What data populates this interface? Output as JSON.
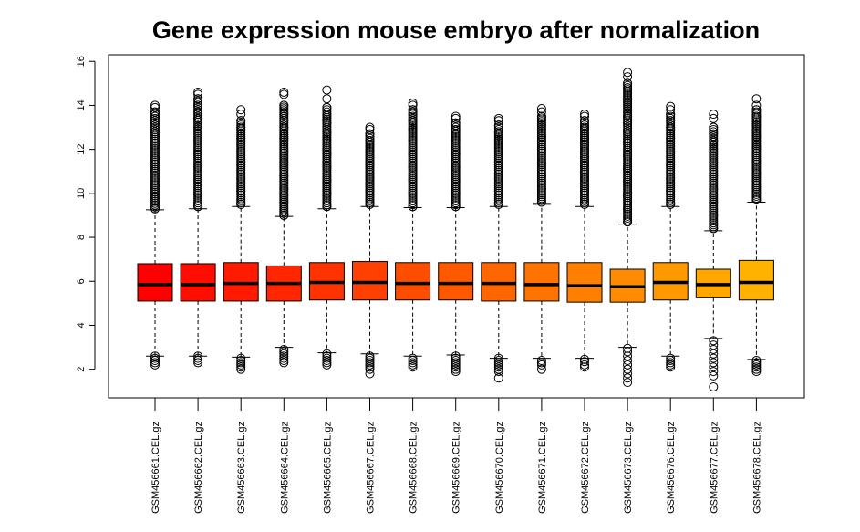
{
  "chart_data": {
    "type": "boxplot",
    "title": "Gene expression mouse embryo after normalization",
    "xlabel": "",
    "ylabel": "",
    "ylim": [
      0.7,
      16.3
    ],
    "yticks": [
      2,
      4,
      6,
      8,
      10,
      12,
      14,
      16
    ],
    "grid": false,
    "categories": [
      "GSM456661.CEL.gz",
      "GSM456662.CEL.gz",
      "GSM456663.CEL.gz",
      "GSM456664.CEL.gz",
      "GSM456665.CEL.gz",
      "GSM456667.CEL.gz",
      "GSM456668.CEL.gz",
      "GSM456669.CEL.gz",
      "GSM456670.CEL.gz",
      "GSM456671.CEL.gz",
      "GSM456672.CEL.gz",
      "GSM456673.CEL.gz",
      "GSM456676.CEL.gz",
      "GSM456677.CEL.gz",
      "GSM456678.CEL.gz"
    ],
    "boxes": [
      {
        "whisker_low": 2.6,
        "q1": 5.1,
        "median": 5.85,
        "q3": 6.8,
        "whisker_high": 9.25,
        "outliers_low": [
          2.6,
          2.5,
          2.4,
          2.3,
          2.2
        ],
        "outliers_high": [
          9.3,
          9.8,
          10.4,
          11.0,
          11.6,
          12.2,
          12.8,
          13.2,
          13.5,
          13.7,
          13.9,
          14.0
        ]
      },
      {
        "whisker_low": 2.6,
        "q1": 5.1,
        "median": 5.85,
        "q3": 6.8,
        "whisker_high": 9.3,
        "outliers_low": [
          2.6,
          2.5,
          2.4,
          2.3
        ],
        "outliers_high": [
          9.4,
          10.0,
          10.6,
          11.2,
          11.8,
          12.4,
          13.0,
          13.4,
          13.7,
          14.0,
          14.3,
          14.5,
          14.6
        ]
      },
      {
        "whisker_low": 2.55,
        "q1": 5.1,
        "median": 5.9,
        "q3": 6.85,
        "whisker_high": 9.4,
        "outliers_low": [
          2.5,
          2.4,
          2.3,
          2.2,
          2.1,
          2.0
        ],
        "outliers_high": [
          9.5,
          10.1,
          10.7,
          11.3,
          11.9,
          12.5,
          13.0,
          13.3,
          13.6,
          13.8
        ]
      },
      {
        "whisker_low": 3.0,
        "q1": 5.1,
        "median": 5.9,
        "q3": 6.7,
        "whisker_high": 8.95,
        "outliers_low": [
          2.9,
          2.8,
          2.7,
          2.6,
          2.5,
          2.4,
          2.3
        ],
        "outliers_high": [
          9.0,
          9.6,
          10.2,
          10.8,
          11.4,
          12.0,
          12.5,
          13.0,
          13.3,
          13.6,
          14.0,
          14.5,
          14.6
        ]
      },
      {
        "whisker_low": 2.75,
        "q1": 5.15,
        "median": 5.95,
        "q3": 6.85,
        "whisker_high": 9.3,
        "outliers_low": [
          2.7,
          2.6,
          2.5,
          2.4,
          2.3,
          2.2
        ],
        "outliers_high": [
          9.4,
          10.0,
          10.6,
          11.2,
          11.8,
          12.4,
          12.8,
          13.2,
          13.6,
          13.9,
          14.3,
          14.7
        ]
      },
      {
        "whisker_low": 2.7,
        "q1": 5.15,
        "median": 5.95,
        "q3": 6.9,
        "whisker_high": 9.4,
        "outliers_low": [
          2.6,
          2.5,
          2.4,
          2.3,
          2.2,
          2.1,
          2.0,
          1.8
        ],
        "outliers_high": [
          9.5,
          10.1,
          10.7,
          11.3,
          11.9,
          12.4,
          12.7,
          12.9,
          13.0
        ]
      },
      {
        "whisker_low": 2.6,
        "q1": 5.15,
        "median": 5.9,
        "q3": 6.85,
        "whisker_high": 9.35,
        "outliers_low": [
          2.5,
          2.4,
          2.3,
          2.2,
          2.1
        ],
        "outliers_high": [
          9.4,
          10.0,
          10.6,
          11.2,
          11.8,
          12.4,
          12.9,
          13.3,
          13.6,
          13.8,
          14.0,
          14.1
        ]
      },
      {
        "whisker_low": 2.65,
        "q1": 5.15,
        "median": 5.9,
        "q3": 6.85,
        "whisker_high": 9.35,
        "outliers_low": [
          2.6,
          2.5,
          2.4,
          2.3,
          2.2,
          2.1,
          2.0,
          1.9
        ],
        "outliers_high": [
          9.4,
          10.0,
          10.6,
          11.2,
          11.8,
          12.4,
          12.9,
          13.2,
          13.4,
          13.5
        ]
      },
      {
        "whisker_low": 2.5,
        "q1": 5.1,
        "median": 5.9,
        "q3": 6.85,
        "whisker_high": 9.4,
        "outliers_low": [
          2.5,
          2.4,
          2.3,
          2.2,
          2.1,
          2.0,
          1.9,
          1.6
        ],
        "outliers_high": [
          9.5,
          10.1,
          10.7,
          11.3,
          11.9,
          12.4,
          12.8,
          13.1,
          13.3,
          13.4
        ]
      },
      {
        "whisker_low": 2.5,
        "q1": 5.1,
        "median": 5.85,
        "q3": 6.85,
        "whisker_high": 9.5,
        "outliers_low": [
          2.4,
          2.3,
          2.2,
          2.0
        ],
        "outliers_high": [
          9.6,
          10.2,
          10.8,
          11.4,
          12.0,
          12.6,
          13.1,
          13.5,
          13.7,
          13.85
        ]
      },
      {
        "whisker_low": 2.5,
        "q1": 5.05,
        "median": 5.8,
        "q3": 6.85,
        "whisker_high": 9.4,
        "outliers_low": [
          2.45,
          2.35,
          2.2,
          2.1
        ],
        "outliers_high": [
          9.5,
          10.1,
          10.7,
          11.3,
          11.9,
          12.5,
          13.0,
          13.3,
          13.5,
          13.6
        ]
      },
      {
        "whisker_low": 3.0,
        "q1": 5.05,
        "median": 5.75,
        "q3": 6.55,
        "whisker_high": 8.6,
        "outliers_low": [
          2.95,
          2.8,
          2.6,
          2.4,
          2.2,
          2.0,
          1.8,
          1.6,
          1.4
        ],
        "outliers_high": [
          8.7,
          9.3,
          9.9,
          10.5,
          11.1,
          11.7,
          12.3,
          12.8,
          13.2,
          13.5,
          14.8,
          15.0,
          15.3,
          15.5
        ]
      },
      {
        "whisker_low": 2.6,
        "q1": 5.15,
        "median": 5.95,
        "q3": 6.85,
        "whisker_high": 9.4,
        "outliers_low": [
          2.5,
          2.4,
          2.3,
          2.2,
          2.1
        ],
        "outliers_high": [
          9.5,
          10.1,
          10.7,
          11.3,
          11.9,
          12.5,
          13.0,
          13.3,
          13.6,
          13.8,
          13.95
        ]
      },
      {
        "whisker_low": 3.4,
        "q1": 5.25,
        "median": 5.85,
        "q3": 6.55,
        "whisker_high": 8.3,
        "outliers_low": [
          3.3,
          3.1,
          2.9,
          2.7,
          2.5,
          2.3,
          2.1,
          1.9,
          1.7,
          1.2
        ],
        "outliers_high": [
          8.4,
          9.0,
          9.6,
          10.2,
          10.8,
          11.4,
          12.0,
          12.4,
          12.7,
          13.0,
          13.4,
          13.6
        ]
      },
      {
        "whisker_low": 2.45,
        "q1": 5.15,
        "median": 5.95,
        "q3": 6.95,
        "whisker_high": 9.6,
        "outliers_low": [
          2.4,
          2.3,
          2.2,
          2.1,
          2.0,
          1.9
        ],
        "outliers_high": [
          9.7,
          10.3,
          10.9,
          11.5,
          12.1,
          12.6,
          13.1,
          13.5,
          13.8,
          14.0,
          14.3
        ]
      }
    ],
    "colors": [
      "#ff0000",
      "#ff0d00",
      "#ff1a00",
      "#ff2600",
      "#ff3300",
      "#ff4000",
      "#ff4d00",
      "#ff5900",
      "#ff6600",
      "#ff7300",
      "#ff7f00",
      "#ff8c00",
      "#ff9900",
      "#ffa600",
      "#ffb300"
    ]
  }
}
